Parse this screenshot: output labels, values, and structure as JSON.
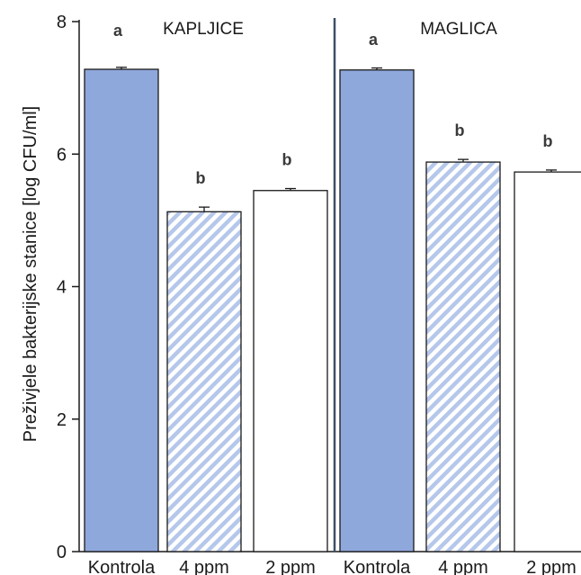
{
  "chart_data": {
    "type": "bar",
    "ylabel": "Preživjele bakterijske stanice [log CFU/ml]",
    "xlabel": "",
    "ylim": [
      0,
      8
    ],
    "yticks": [
      0,
      2,
      4,
      6,
      8
    ],
    "grid": false,
    "groups": [
      {
        "name": "KAPLJICE",
        "bars": [
          {
            "category": "Kontrola",
            "value": 7.28,
            "error": 0.03,
            "letter": "a",
            "fill": "solid"
          },
          {
            "category": "4 ppm",
            "value": 5.13,
            "error": 0.07,
            "letter": "b",
            "fill": "hatched"
          },
          {
            "category": "2 ppm",
            "value": 5.45,
            "error": 0.03,
            "letter": "b",
            "fill": "white"
          }
        ]
      },
      {
        "name": "MAGLICA",
        "bars": [
          {
            "category": "Kontrola",
            "value": 7.27,
            "error": 0.03,
            "letter": "a",
            "fill": "solid"
          },
          {
            "category": "4 ppm",
            "value": 5.88,
            "error": 0.04,
            "letter": "b",
            "fill": "hatched"
          },
          {
            "category": "2 ppm",
            "value": 5.73,
            "error": 0.03,
            "letter": "b",
            "fill": "white"
          }
        ]
      }
    ],
    "colors": {
      "solid": "#8fa8dc",
      "hatch": "#b5c7ea",
      "outline": "#1a1a1a",
      "divider": "#3d4f66"
    }
  }
}
